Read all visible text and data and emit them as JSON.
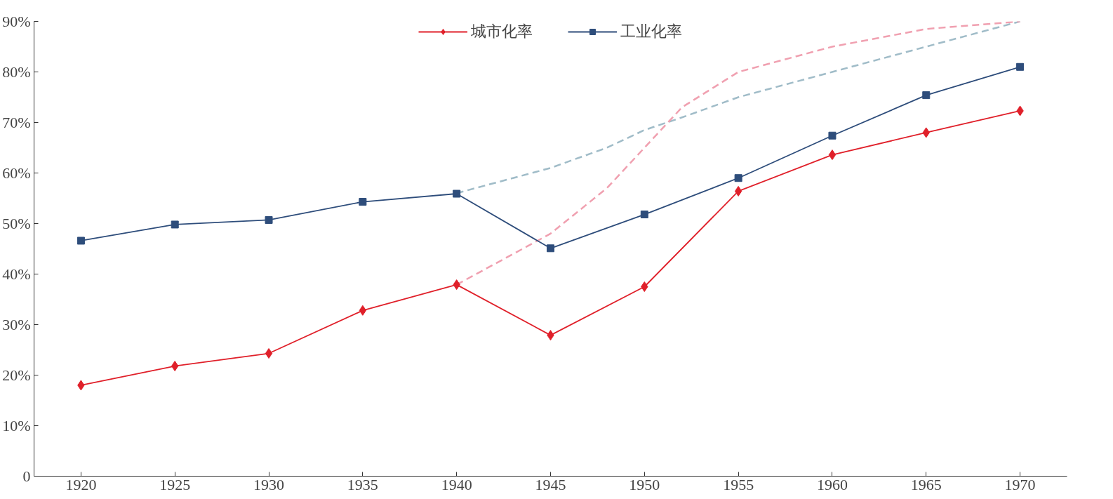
{
  "chart_data": {
    "type": "line",
    "x": [
      1920,
      1925,
      1930,
      1935,
      1940,
      1945,
      1950,
      1955,
      1960,
      1965,
      1970
    ],
    "series": [
      {
        "name": "城市化率",
        "color": "#e0202a",
        "marker": "diamond",
        "values": [
          18.0,
          21.8,
          24.3,
          32.8,
          37.9,
          27.9,
          37.5,
          56.4,
          63.6,
          68.0,
          72.3
        ]
      },
      {
        "name": "工业化率",
        "color": "#2e4d7b",
        "marker": "square",
        "values": [
          46.6,
          49.8,
          50.7,
          54.3,
          55.9,
          45.1,
          51.8,
          59.0,
          67.4,
          75.4,
          81.0
        ]
      },
      {
        "color": "#f0a0b0",
        "marker": "none",
        "line_style": "dashed",
        "x": [
          1940,
          1945,
          1948,
          1950,
          1952,
          1955,
          1960,
          1965,
          1970
        ],
        "values": [
          37.9,
          48,
          57,
          65,
          73,
          80,
          85,
          88.5,
          90
        ]
      },
      {
        "color": "#a0bcc8",
        "marker": "none",
        "line_style": "dashed",
        "x": [
          1940,
          1945,
          1948,
          1950,
          1952,
          1955,
          1960,
          1965,
          1970
        ],
        "values": [
          56,
          61,
          65,
          68.5,
          71,
          75,
          80,
          85,
          90
        ]
      }
    ],
    "xlim": [
      1917.5,
      1972.5
    ],
    "xticks": [
      1920,
      1925,
      1930,
      1935,
      1940,
      1945,
      1950,
      1955,
      1960,
      1965,
      1970
    ],
    "ylim": [
      0,
      90
    ],
    "yticks": [
      {
        "value": 0,
        "label": "0"
      },
      {
        "value": 10,
        "label": "10%"
      },
      {
        "value": 20,
        "label": "20%"
      },
      {
        "value": 30,
        "label": "30%"
      },
      {
        "value": 40,
        "label": "40%"
      },
      {
        "value": 50,
        "label": "50%"
      },
      {
        "value": 60,
        "label": "60%"
      },
      {
        "value": 70,
        "label": "70%"
      },
      {
        "value": 80,
        "label": "80%"
      },
      {
        "value": 90,
        "label": "90%"
      }
    ],
    "grid": false,
    "legend": "top"
  }
}
